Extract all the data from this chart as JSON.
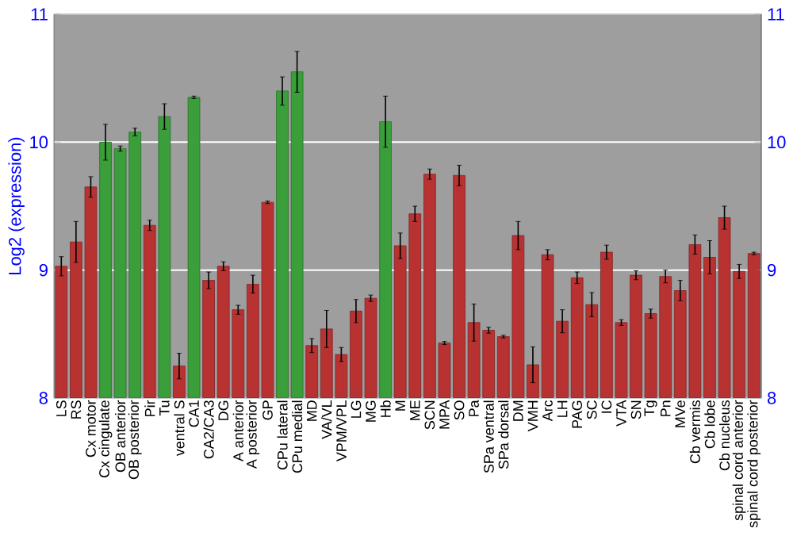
{
  "chart_data": {
    "type": "bar",
    "ylabel": "Log2 (expression)",
    "categories": [
      "LS",
      "RS",
      "Cx motor",
      "Cx cingulate",
      "OB anterior",
      "OB posterior",
      "Pir",
      "Tu",
      "ventral S",
      "CA1",
      "CA2/CA3",
      "DG",
      "A anterior",
      "A posterior",
      "GP",
      "CPu lateral",
      "CPu medial",
      "MD",
      "VA/VL",
      "VPM/VPL",
      "LG",
      "MG",
      "Hb",
      "M",
      "ME",
      "SCN",
      "MPA",
      "SO",
      "Pa",
      "SPa ventral",
      "SPa dorsal",
      "DM",
      "VMH",
      "Arc",
      "LH",
      "PAG",
      "SC",
      "IC",
      "VTA",
      "SN",
      "Tg",
      "Pn",
      "MVe",
      "Cb vermis",
      "Cb lobe",
      "Cb nucleus",
      "spinal cord anterior",
      "spinal cord posterior"
    ],
    "values": [
      9.03,
      9.22,
      9.65,
      10.0,
      9.95,
      10.08,
      9.35,
      10.2,
      8.25,
      10.35,
      8.92,
      9.03,
      8.69,
      8.89,
      9.53,
      10.4,
      10.55,
      8.41,
      8.54,
      8.34,
      8.68,
      8.78,
      10.16,
      9.19,
      9.44,
      9.75,
      8.43,
      9.74,
      8.59,
      8.53,
      8.48,
      9.27,
      8.26,
      9.12,
      8.6,
      8.94,
      8.73,
      9.14,
      8.59,
      8.96,
      8.66,
      8.95,
      8.84,
      9.2,
      9.1,
      9.41,
      8.99,
      9.13
    ],
    "errors": [
      0.075,
      0.16,
      0.08,
      0.14,
      0.02,
      0.03,
      0.04,
      0.1,
      0.1,
      0.01,
      0.065,
      0.035,
      0.035,
      0.07,
      0.01,
      0.11,
      0.16,
      0.055,
      0.145,
      0.055,
      0.09,
      0.025,
      0.2,
      0.1,
      0.06,
      0.04,
      0.012,
      0.08,
      0.145,
      0.023,
      0.01,
      0.11,
      0.14,
      0.04,
      0.09,
      0.045,
      0.095,
      0.055,
      0.023,
      0.035,
      0.035,
      0.05,
      0.08,
      0.075,
      0.13,
      0.09,
      0.055,
      0.01
    ],
    "colors": [
      "#b83232",
      "#b83232",
      "#b83232",
      "#3a9e3a",
      "#3a9e3a",
      "#3a9e3a",
      "#b83232",
      "#3a9e3a",
      "#b83232",
      "#3a9e3a",
      "#b83232",
      "#b83232",
      "#b83232",
      "#b83232",
      "#b83232",
      "#3a9e3a",
      "#3a9e3a",
      "#b83232",
      "#b83232",
      "#b83232",
      "#b83232",
      "#b83232",
      "#3a9e3a",
      "#b83232",
      "#b83232",
      "#b83232",
      "#b83232",
      "#b83232",
      "#b83232",
      "#b83232",
      "#b83232",
      "#b83232",
      "#b83232",
      "#b83232",
      "#b83232",
      "#b83232",
      "#b83232",
      "#b83232",
      "#b83232",
      "#b83232",
      "#b83232",
      "#b83232",
      "#b83232",
      "#b83232",
      "#b83232",
      "#b83232",
      "#b83232",
      "#b83232"
    ],
    "ylim": [
      8,
      11
    ],
    "yticks": [
      8,
      9,
      10,
      11
    ],
    "y2lim": [
      8,
      11
    ],
    "y2ticks": [
      8,
      9,
      10,
      11
    ],
    "grid": "y"
  }
}
